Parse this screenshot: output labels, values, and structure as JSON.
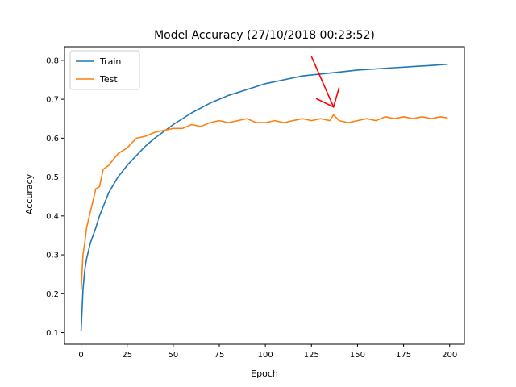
{
  "chart_data": {
    "type": "line",
    "title": "Model Accuracy (27/10/2018 00:23:52)",
    "xlabel": "Epoch",
    "ylabel": "Accuracy",
    "xlim": [
      -9,
      208
    ],
    "ylim": [
      0.07,
      0.835
    ],
    "xticks": [
      0,
      25,
      50,
      75,
      100,
      125,
      150,
      175,
      200
    ],
    "yticks": [
      0.1,
      0.2,
      0.3,
      0.4,
      0.5,
      0.6,
      0.7,
      0.8
    ],
    "grid": false,
    "legend": "upper left",
    "series": [
      {
        "name": "Train",
        "color": "#1f77b4",
        "x": [
          0,
          1,
          2,
          3,
          5,
          8,
          10,
          15,
          20,
          25,
          30,
          35,
          40,
          50,
          60,
          70,
          75,
          80,
          90,
          100,
          110,
          120,
          130,
          140,
          150,
          160,
          170,
          180,
          190,
          199
        ],
        "values": [
          0.105,
          0.21,
          0.26,
          0.29,
          0.33,
          0.37,
          0.4,
          0.46,
          0.5,
          0.53,
          0.555,
          0.58,
          0.6,
          0.635,
          0.665,
          0.69,
          0.7,
          0.71,
          0.725,
          0.74,
          0.75,
          0.76,
          0.765,
          0.77,
          0.775,
          0.778,
          0.781,
          0.784,
          0.787,
          0.79
        ]
      },
      {
        "name": "Test",
        "color": "#ff7f0e",
        "x": [
          0,
          1,
          2,
          3,
          5,
          8,
          10,
          12,
          15,
          20,
          25,
          30,
          35,
          40,
          45,
          50,
          55,
          60,
          65,
          70,
          75,
          80,
          85,
          90,
          95,
          100,
          105,
          110,
          115,
          120,
          125,
          130,
          135,
          137,
          140,
          145,
          150,
          155,
          160,
          165,
          170,
          175,
          180,
          185,
          190,
          195,
          199
        ],
        "values": [
          0.21,
          0.3,
          0.33,
          0.37,
          0.41,
          0.47,
          0.475,
          0.52,
          0.53,
          0.56,
          0.575,
          0.6,
          0.605,
          0.615,
          0.62,
          0.625,
          0.625,
          0.635,
          0.63,
          0.64,
          0.645,
          0.64,
          0.645,
          0.65,
          0.64,
          0.64,
          0.645,
          0.64,
          0.645,
          0.65,
          0.645,
          0.65,
          0.645,
          0.66,
          0.645,
          0.64,
          0.645,
          0.65,
          0.645,
          0.655,
          0.65,
          0.655,
          0.65,
          0.655,
          0.65,
          0.655,
          0.652
        ]
      }
    ],
    "annotation_arrow": {
      "color": "#ff0000",
      "from": [
        125,
        0.81
      ],
      "to": [
        137,
        0.68
      ],
      "head": "v"
    }
  }
}
